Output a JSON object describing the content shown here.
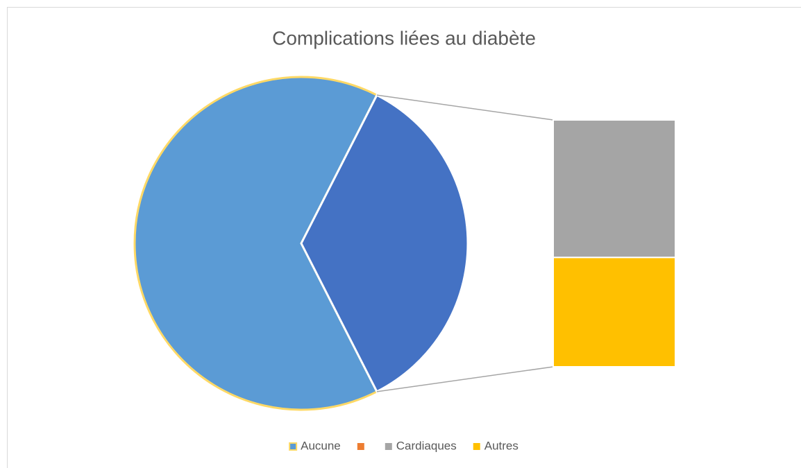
{
  "chart_data": {
    "type": "bar_of_pie",
    "title": "Complications liées au diabète",
    "categories": [
      "Aucune",
      null,
      "Cardiaques",
      "Autres"
    ],
    "values": [
      65,
      0,
      19.5,
      15.5
    ],
    "colors": [
      "#5b9bd5",
      "#ed7d31",
      "#a5a5a5",
      "#ffc000"
    ],
    "other_color": "#4472c4",
    "second_plot_items": 3,
    "legend": "bottom"
  }
}
